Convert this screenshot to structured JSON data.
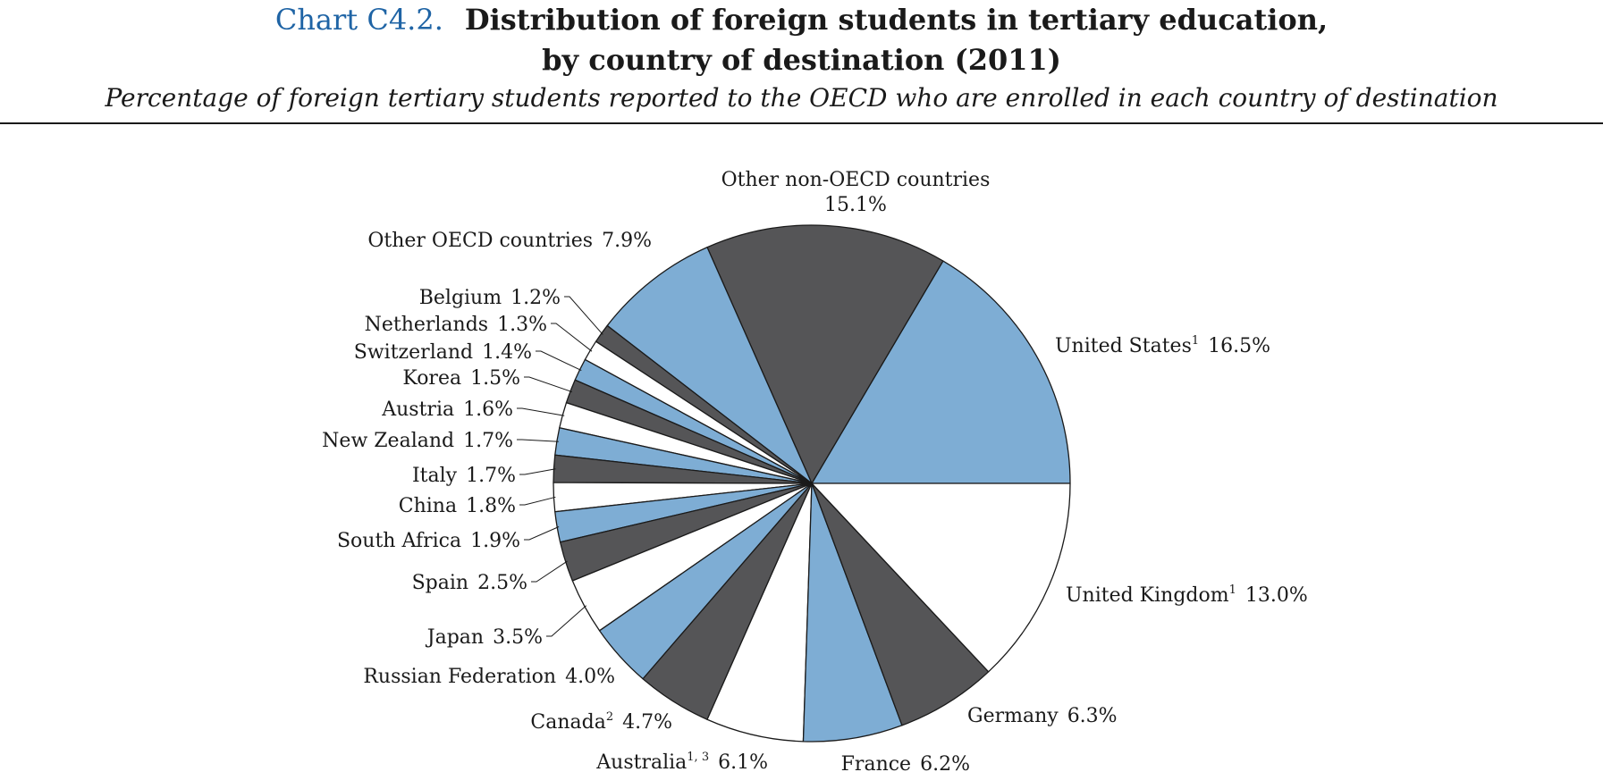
{
  "header": {
    "chart_number": "Chart C4.2.",
    "title_line1": "Distribution of foreign students in tertiary education,",
    "title_line2": "by country of destination (2011)",
    "subtitle": "Percentage of foreign tertiary students reported to the OECD who are enrolled in each country of destination"
  },
  "colors": {
    "blue": "#7eadd4",
    "dark": "#555557",
    "white": "#ffffff",
    "outline": "#1a1a1a",
    "accent": "#1f64a5"
  },
  "chart_data": {
    "type": "pie",
    "title": "Distribution of foreign students in tertiary education, by country of destination (2011)",
    "unit": "%",
    "start": "3 o'clock, counter-clockwise",
    "slices": [
      {
        "name": "United States",
        "sup": "1",
        "value": 16.5,
        "value_label": "16.5%",
        "color": "blue"
      },
      {
        "name": "Other non-OECD countries",
        "sup": "",
        "value": 15.1,
        "value_label": "15.1%",
        "color": "dark"
      },
      {
        "name": "Other OECD countries",
        "sup": "",
        "value": 7.9,
        "value_label": "7.9%",
        "color": "blue"
      },
      {
        "name": "Belgium",
        "sup": "",
        "value": 1.2,
        "value_label": "1.2%",
        "color": "dark"
      },
      {
        "name": "Netherlands",
        "sup": "",
        "value": 1.3,
        "value_label": "1.3%",
        "color": "white"
      },
      {
        "name": "Switzerland",
        "sup": "",
        "value": 1.4,
        "value_label": "1.4%",
        "color": "blue"
      },
      {
        "name": "Korea",
        "sup": "",
        "value": 1.5,
        "value_label": "1.5%",
        "color": "dark"
      },
      {
        "name": "Austria",
        "sup": "",
        "value": 1.6,
        "value_label": "1.6%",
        "color": "white"
      },
      {
        "name": "New Zealand",
        "sup": "",
        "value": 1.7,
        "value_label": "1.7%",
        "color": "blue"
      },
      {
        "name": "Italy",
        "sup": "",
        "value": 1.7,
        "value_label": "1.7%",
        "color": "dark"
      },
      {
        "name": "China",
        "sup": "",
        "value": 1.8,
        "value_label": "1.8%",
        "color": "white"
      },
      {
        "name": "South Africa",
        "sup": "",
        "value": 1.9,
        "value_label": "1.9%",
        "color": "blue"
      },
      {
        "name": "Spain",
        "sup": "",
        "value": 2.5,
        "value_label": "2.5%",
        "color": "dark"
      },
      {
        "name": "Japan",
        "sup": "",
        "value": 3.5,
        "value_label": "3.5%",
        "color": "white"
      },
      {
        "name": "Russian Federation",
        "sup": "",
        "value": 4.0,
        "value_label": "4.0%",
        "color": "blue"
      },
      {
        "name": "Canada",
        "sup": "2",
        "value": 4.7,
        "value_label": "4.7%",
        "color": "dark"
      },
      {
        "name": "Australia",
        "sup": "1, 3",
        "value": 6.1,
        "value_label": "6.1%",
        "color": "white"
      },
      {
        "name": "France",
        "sup": "",
        "value": 6.2,
        "value_label": "6.2%",
        "color": "blue"
      },
      {
        "name": "Germany",
        "sup": "",
        "value": 6.3,
        "value_label": "6.3%",
        "color": "dark"
      },
      {
        "name": "United Kingdom",
        "sup": "1",
        "value": 13.0,
        "value_label": "13.0%",
        "color": "white"
      }
    ]
  }
}
